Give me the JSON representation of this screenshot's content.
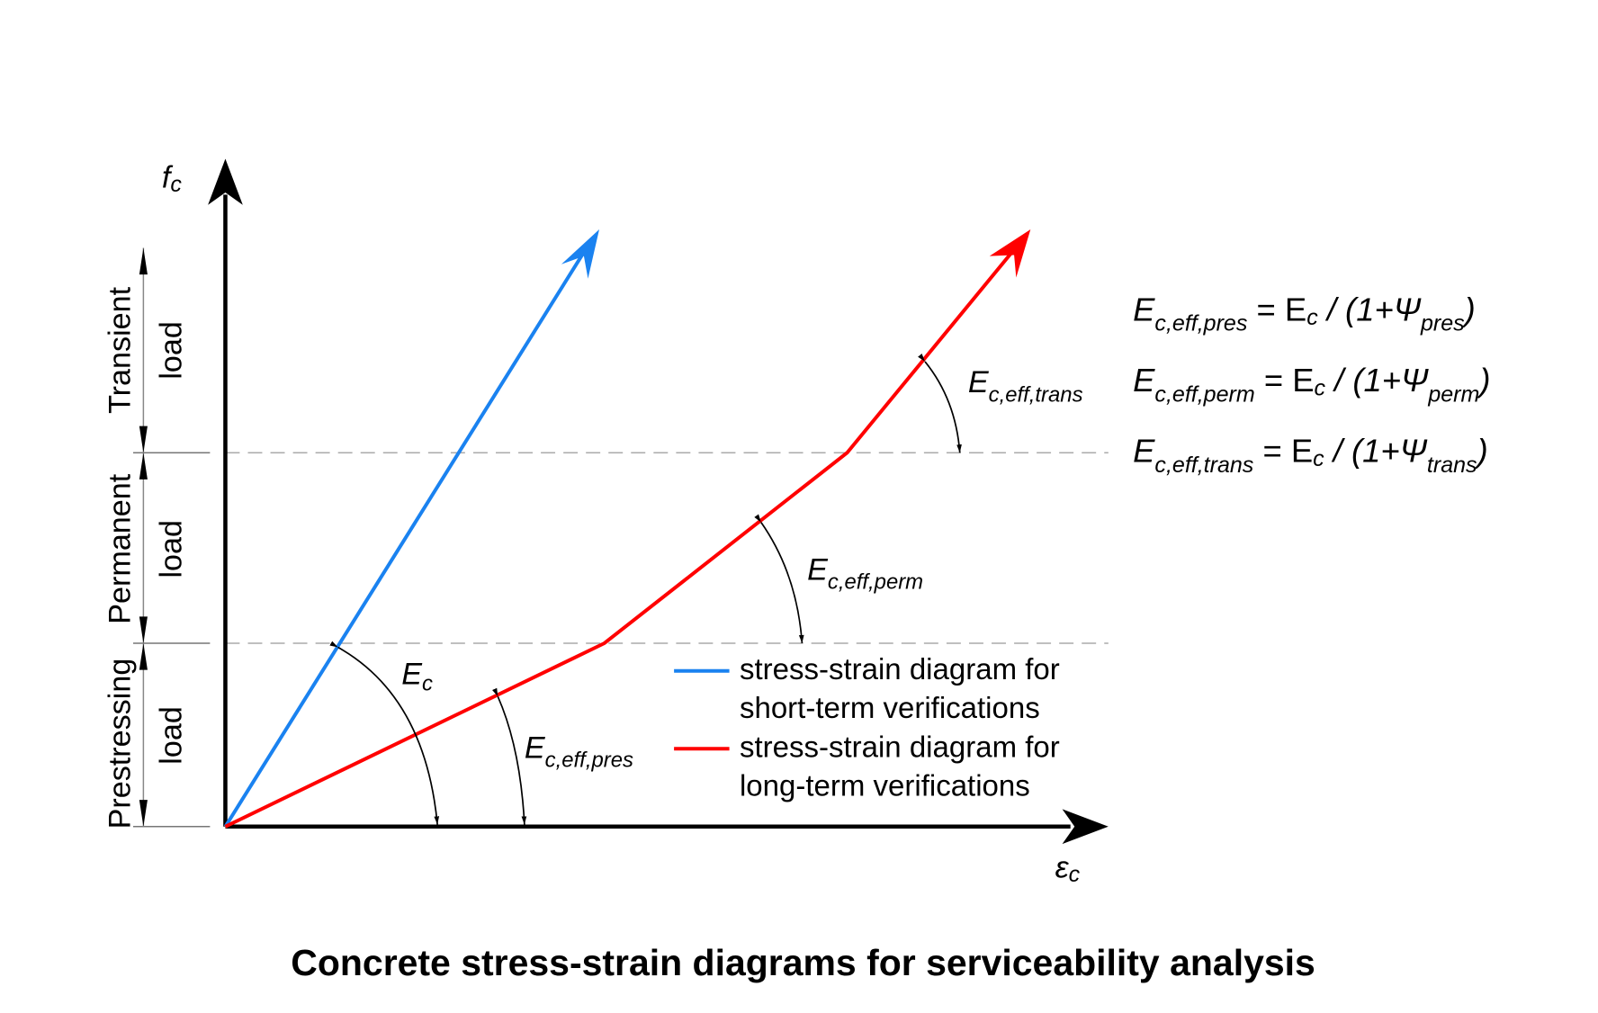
{
  "title": "Concrete stress-strain diagrams for serviceability analysis",
  "axes": {
    "y_label": "f",
    "y_sub": "c",
    "x_label": "ε",
    "x_sub": "c"
  },
  "load_zones": [
    {
      "name": "Transient",
      "unit": "load"
    },
    {
      "name": "Permanent",
      "unit": "load"
    },
    {
      "name": "Prestressing",
      "unit": "load"
    }
  ],
  "angle_labels": {
    "ec": {
      "main": "E",
      "sub": "c"
    },
    "pres": {
      "main": "E",
      "sub": "c,eff,pres"
    },
    "perm": {
      "main": "E",
      "sub": "c,eff,perm"
    },
    "trans": {
      "main": "E",
      "sub": "c,eff,trans"
    }
  },
  "formulas": [
    {
      "lhs": "E",
      "lhs_sub": "c,eff,pres",
      "eq": " = E",
      "ec_sub": "c",
      "mid": " / (1+Ψ",
      "psi_sub": "pres",
      "close": ")"
    },
    {
      "lhs": "E",
      "lhs_sub": "c,eff,perm",
      "eq": " = E",
      "ec_sub": "c",
      "mid": " / (1+Ψ",
      "psi_sub": "perm",
      "close": ")"
    },
    {
      "lhs": "E",
      "lhs_sub": "c,eff,trans",
      "eq": " = E",
      "ec_sub": "c",
      "mid": " / (1+Ψ",
      "psi_sub": "trans",
      "close": ")"
    }
  ],
  "legend": [
    {
      "line1": "stress-strain diagram for",
      "line2": "short-term verifications",
      "color": "#1a82f0"
    },
    {
      "line1": "stress-strain diagram for",
      "line2": "long-term verifications",
      "color": "#ff0000"
    }
  ],
  "colors": {
    "short_term": "#1a82f0",
    "long_term": "#ff0000",
    "axis": "#000000",
    "guide": "#aaaaaa"
  }
}
